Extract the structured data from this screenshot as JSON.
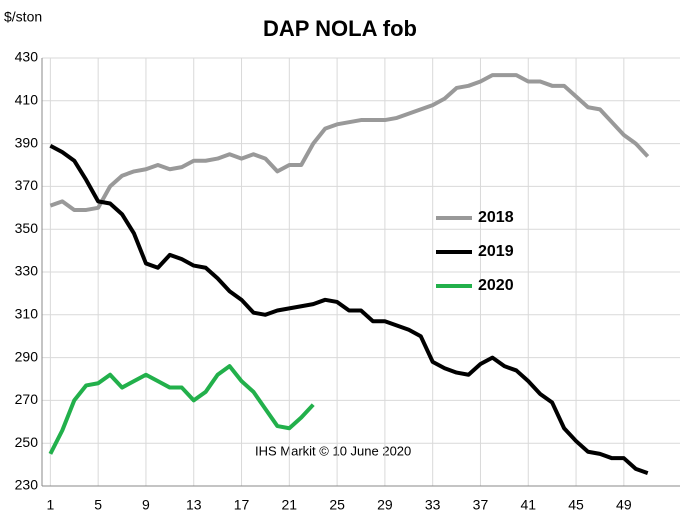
{
  "chart_data": {
    "type": "line",
    "title": "DAP NOLA fob",
    "ylabel": "$/ston",
    "annotation": "IHS  Markit  © 10 June 2020",
    "x": [
      1,
      2,
      3,
      4,
      5,
      6,
      7,
      8,
      9,
      10,
      11,
      12,
      13,
      14,
      15,
      16,
      17,
      18,
      19,
      20,
      21,
      22,
      23,
      24,
      25,
      26,
      27,
      28,
      29,
      30,
      31,
      32,
      33,
      34,
      35,
      36,
      37,
      38,
      39,
      40,
      41,
      42,
      43,
      44,
      45,
      46,
      47,
      48,
      49,
      50,
      51
    ],
    "series": [
      {
        "name": "2018",
        "color": "#999999",
        "values": [
          361,
          363,
          359,
          359,
          360,
          370,
          375,
          377,
          378,
          380,
          378,
          379,
          382,
          382,
          383,
          385,
          383,
          385,
          383,
          377,
          380,
          380,
          390,
          397,
          399,
          400,
          401,
          401,
          401,
          402,
          404,
          406,
          408,
          411,
          416,
          417,
          419,
          422,
          422,
          422,
          419,
          419,
          417,
          417,
          412,
          407,
          406,
          400,
          394,
          390,
          384
        ]
      },
      {
        "name": "2019",
        "color": "#000000",
        "values": [
          389,
          386,
          382,
          373,
          363,
          362,
          357,
          348,
          334,
          332,
          338,
          336,
          333,
          332,
          327,
          321,
          317,
          311,
          310,
          312,
          313,
          314,
          315,
          317,
          316,
          312,
          312,
          307,
          307,
          305,
          303,
          300,
          288,
          285,
          283,
          282,
          287,
          290,
          286,
          284,
          279,
          273,
          269,
          257,
          251,
          246,
          245,
          243,
          243,
          238,
          236
        ]
      },
      {
        "name": "2020",
        "color": "#22b04b",
        "values": [
          245,
          256,
          270,
          277,
          278,
          282,
          276,
          279,
          282,
          279,
          276,
          276,
          270,
          274,
          282,
          286,
          279,
          274,
          266,
          258,
          257,
          262,
          268,
          null,
          null,
          null,
          null,
          null,
          null,
          null,
          null,
          null,
          null,
          null,
          null,
          null,
          null,
          null,
          null,
          null,
          null,
          null,
          null,
          null,
          null,
          null,
          null,
          null,
          null,
          null,
          null
        ]
      }
    ],
    "xlim": [
      0.3,
      53.7
    ],
    "xticks": [
      1,
      5,
      9,
      13,
      17,
      21,
      25,
      29,
      33,
      37,
      41,
      45,
      49
    ],
    "ylim": [
      230,
      430
    ],
    "yticks": [
      230,
      250,
      270,
      290,
      310,
      330,
      350,
      370,
      390,
      410,
      430
    ],
    "grid": true,
    "legend": "right"
  }
}
